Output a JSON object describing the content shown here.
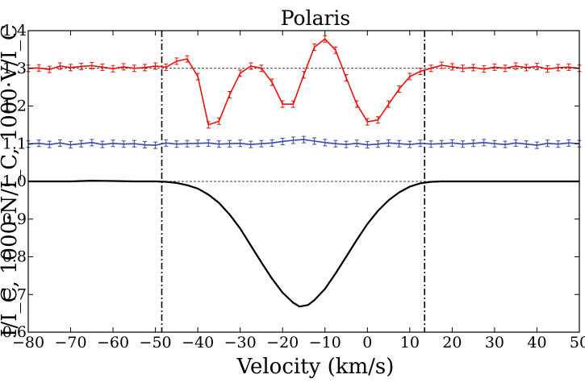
{
  "chart_data": {
    "type": "line",
    "title": "Polaris",
    "xlabel": "Velocity (km/s)",
    "ylabel": "I/I_C, 1000·N/I_C, 1000·V/I_C",
    "xlim": [
      -80,
      50
    ],
    "ylim": [
      0.6,
      1.4
    ],
    "x_ticks": [
      -80,
      -70,
      -60,
      -50,
      -40,
      -30,
      -20,
      -10,
      0,
      10,
      20,
      30,
      40,
      50
    ],
    "x_tick_labels": [
      "−80",
      "−70",
      "−60",
      "−50",
      "−40",
      "−30",
      "−20",
      "−10",
      "0",
      "10",
      "20",
      "30",
      "40",
      "50"
    ],
    "y_ticks": [
      0.6,
      0.7,
      0.8,
      0.9,
      1.0,
      1.1,
      1.2,
      1.3,
      1.4
    ],
    "y_tick_labels": [
      "0.6",
      "0.7",
      "0.8",
      "0.9",
      "1.0",
      "1.1",
      "1.2",
      "1.3",
      "1.4"
    ],
    "reference_lines_y": [
      1.0,
      1.3
    ],
    "vertical_lines_x": [
      -48.5,
      13.5
    ],
    "grid": false,
    "series": [
      {
        "color": "#e8120c",
        "error_bars": true,
        "x": [
          -80,
          -77.5,
          -75,
          -72.5,
          -70,
          -67.5,
          -65,
          -62.5,
          -60,
          -57.5,
          -55,
          -52.5,
          -50,
          -47.5,
          -45,
          -42.5,
          -40,
          -37.5,
          -35,
          -32.5,
          -30,
          -27.5,
          -25,
          -22.5,
          -20,
          -17.5,
          -15,
          -12.5,
          -10,
          -7.5,
          -5,
          -2.5,
          0,
          2.5,
          5,
          7.5,
          10,
          12.5,
          15,
          17.5,
          20,
          22.5,
          25,
          27.5,
          30,
          32.5,
          35,
          37.5,
          40,
          42.5,
          45,
          47.5,
          50
        ],
        "y": [
          1.3,
          1.301,
          1.297,
          1.306,
          1.302,
          1.305,
          1.307,
          1.303,
          1.299,
          1.304,
          1.3,
          1.302,
          1.306,
          1.303,
          1.319,
          1.325,
          1.278,
          1.15,
          1.16,
          1.23,
          1.287,
          1.306,
          1.3,
          1.263,
          1.205,
          1.205,
          1.283,
          1.356,
          1.378,
          1.348,
          1.275,
          1.205,
          1.158,
          1.163,
          1.205,
          1.245,
          1.278,
          1.292,
          1.3,
          1.308,
          1.304,
          1.3,
          1.302,
          1.298,
          1.303,
          1.3,
          1.306,
          1.302,
          1.305,
          1.298,
          1.302,
          1.303,
          1.3
        ]
      },
      {
        "color": "#3849a6",
        "error_bars": true,
        "x": [
          -80,
          -77.5,
          -75,
          -72.5,
          -70,
          -67.5,
          -65,
          -62.5,
          -60,
          -57.5,
          -55,
          -52.5,
          -50,
          -47.5,
          -45,
          -42.5,
          -40,
          -37.5,
          -35,
          -32.5,
          -30,
          -27.5,
          -25,
          -22.5,
          -20,
          -17.5,
          -15,
          -12.5,
          -10,
          -7.5,
          -5,
          -2.5,
          0,
          2.5,
          5,
          7.5,
          10,
          12.5,
          15,
          17.5,
          20,
          22.5,
          25,
          27.5,
          30,
          32.5,
          35,
          37.5,
          40,
          42.5,
          45,
          47.5,
          50
        ],
        "y": [
          1.099,
          1.101,
          1.098,
          1.102,
          1.097,
          1.1,
          1.103,
          1.098,
          1.101,
          1.099,
          1.1,
          1.097,
          1.096,
          1.102,
          1.099,
          1.1,
          1.101,
          1.102,
          1.099,
          1.1,
          1.101,
          1.098,
          1.1,
          1.102,
          1.106,
          1.109,
          1.111,
          1.107,
          1.103,
          1.1,
          1.098,
          1.101,
          1.097,
          1.099,
          1.102,
          1.1,
          1.098,
          1.101,
          1.099,
          1.1,
          1.102,
          1.099,
          1.101,
          1.103,
          1.1,
          1.098,
          1.102,
          1.099,
          1.096,
          1.101,
          1.099,
          1.102,
          1.1
        ]
      },
      {
        "color": "#000000",
        "error_bars": false,
        "x": [
          -80,
          -75,
          -70,
          -65,
          -60,
          -55,
          -50,
          -47.5,
          -45,
          -42.5,
          -40,
          -37.5,
          -35,
          -32.5,
          -30,
          -27.5,
          -25,
          -22.5,
          -20,
          -17.5,
          -16,
          -14,
          -12.5,
          -10,
          -7.5,
          -5,
          -2.5,
          0,
          2.5,
          5,
          7.5,
          10,
          12.5,
          15,
          17.5,
          20,
          25,
          30,
          35,
          40,
          45,
          50
        ],
        "y": [
          1.0,
          1.0,
          1.0,
          1.002,
          1.001,
          1.0,
          1.0,
          0.999,
          0.996,
          0.99,
          0.981,
          0.965,
          0.943,
          0.912,
          0.875,
          0.83,
          0.785,
          0.742,
          0.705,
          0.678,
          0.668,
          0.672,
          0.685,
          0.715,
          0.756,
          0.8,
          0.845,
          0.887,
          0.922,
          0.95,
          0.971,
          0.986,
          0.995,
          0.999,
          1.0,
          1.0,
          1.0,
          1.0,
          1.0,
          1.0,
          1.0,
          1.0
        ]
      }
    ]
  }
}
